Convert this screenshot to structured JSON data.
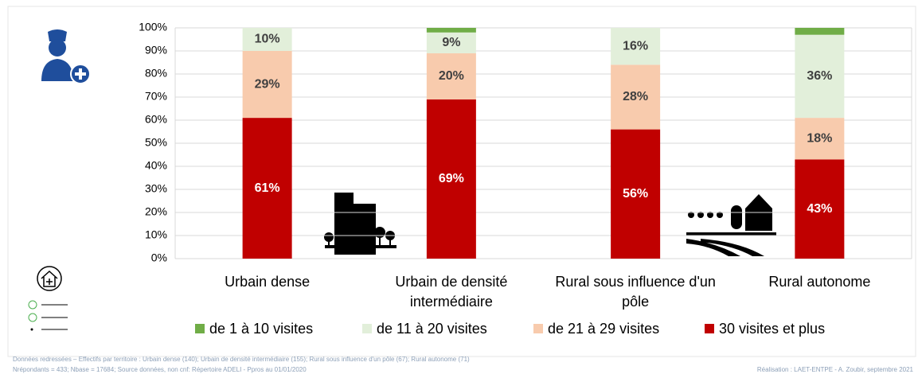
{
  "chart_data": {
    "type": "stacked_bar",
    "categories": [
      "Urbain dense",
      "Urbain de densité intermédiaire",
      "Rural sous influence d'un pôle",
      "Rural autonome"
    ],
    "series": [
      {
        "name": "de 1 à 10 visites",
        "color": "#70ad47",
        "values": [
          0,
          2,
          0,
          3
        ]
      },
      {
        "name": "de 11 à 20 visites",
        "color": "#e2efda",
        "values": [
          10,
          9,
          16,
          36
        ],
        "value_labels": [
          "10%",
          "9%",
          "16%",
          "36%"
        ]
      },
      {
        "name": "de 21 à 29 visites",
        "color": "#f8cbad",
        "values": [
          29,
          20,
          28,
          18
        ],
        "value_labels": [
          "29%",
          "20%",
          "28%",
          "18%"
        ]
      },
      {
        "name": "30 visites et plus",
        "color": "#c00000",
        "values": [
          61,
          69,
          56,
          43
        ],
        "value_labels": [
          "61%",
          "69%",
          "56%",
          "43%"
        ]
      }
    ],
    "ylim": [
      0,
      100
    ],
    "yticks": [
      {
        "value": 0,
        "label": "0%"
      },
      {
        "value": 10,
        "label": "10%"
      },
      {
        "value": 20,
        "label": "20%"
      },
      {
        "value": 30,
        "label": "30%"
      },
      {
        "value": 40,
        "label": "40%"
      },
      {
        "value": 50,
        "label": "50%"
      },
      {
        "value": 60,
        "label": "60%"
      },
      {
        "value": 70,
        "label": "70%"
      },
      {
        "value": 80,
        "label": "80%"
      },
      {
        "value": 90,
        "label": "90%"
      },
      {
        "value": 100,
        "label": "100%"
      }
    ],
    "grid": true,
    "legend": "bottom",
    "footnotes": [
      "Données redressées – Effectifs par territoire : Urbain dense (140); Urbain  de densité intermédiaire (155); Rural sous influence d'un pôle (67); Rural autonome (71)",
      "Nrépondants = 433; Nbase = 17684; Source données, non cnf: Répertoire ADELI - Ppros au 01/01/2020"
    ],
    "credit": "Réalisation : LAET-ENTPE - A. Zoubir, septembre 2021"
  }
}
